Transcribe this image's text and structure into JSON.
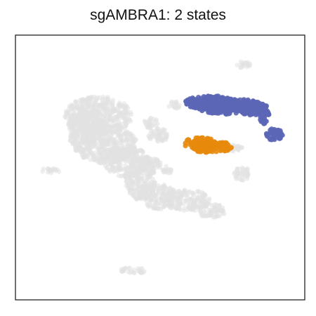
{
  "chart_data": {
    "type": "scatter",
    "title": "sgAMBRA1: 2 states",
    "xlabel": "",
    "ylabel": "",
    "axes_ticks": false,
    "grid": false,
    "legend": "none",
    "colors": {
      "background_cells": "#e2e2e2",
      "state_1": "#5b66b6",
      "state_2": "#e8890c"
    },
    "series": [
      {
        "role": "background",
        "color": "#e2e2e2",
        "regions": [
          {
            "cx": 140,
            "cy": 165,
            "rx": 48,
            "ry": 28
          },
          {
            "cx": 120,
            "cy": 185,
            "rx": 25,
            "ry": 30
          },
          {
            "cx": 150,
            "cy": 205,
            "rx": 45,
            "ry": 28
          },
          {
            "cx": 180,
            "cy": 230,
            "rx": 32,
            "ry": 22
          },
          {
            "cx": 200,
            "cy": 255,
            "rx": 22,
            "ry": 30
          },
          {
            "cx": 225,
            "cy": 280,
            "rx": 26,
            "ry": 18
          },
          {
            "cx": 265,
            "cy": 285,
            "rx": 35,
            "ry": 15
          },
          {
            "cx": 300,
            "cy": 300,
            "rx": 22,
            "ry": 10
          },
          {
            "cx": 215,
            "cy": 235,
            "rx": 14,
            "ry": 12
          },
          {
            "cx": 238,
            "cy": 242,
            "rx": 8,
            "ry": 6
          },
          {
            "cx": 226,
            "cy": 192,
            "rx": 16,
            "ry": 10
          },
          {
            "cx": 215,
            "cy": 175,
            "rx": 10,
            "ry": 8
          },
          {
            "cx": 330,
            "cy": 211,
            "rx": 18,
            "ry": 5
          },
          {
            "cx": 345,
            "cy": 248,
            "rx": 12,
            "ry": 10
          },
          {
            "cx": 72,
            "cy": 243,
            "rx": 14,
            "ry": 4
          },
          {
            "cx": 345,
            "cy": 92,
            "rx": 12,
            "ry": 5
          },
          {
            "cx": 190,
            "cy": 385,
            "rx": 18,
            "ry": 5
          },
          {
            "cx": 248,
            "cy": 150,
            "rx": 8,
            "ry": 6
          }
        ]
      },
      {
        "role": "state_1",
        "color": "#5b66b6",
        "regions": [
          {
            "cx": 300,
            "cy": 146,
            "rx": 36,
            "ry": 10
          },
          {
            "cx": 330,
            "cy": 152,
            "rx": 50,
            "ry": 11
          },
          {
            "cx": 360,
            "cy": 155,
            "rx": 22,
            "ry": 9
          },
          {
            "cx": 376,
            "cy": 165,
            "rx": 7,
            "ry": 12
          },
          {
            "cx": 391,
            "cy": 191,
            "rx": 12,
            "ry": 9
          }
        ]
      },
      {
        "role": "state_2",
        "color": "#e8890c",
        "regions": [
          {
            "cx": 285,
            "cy": 204,
            "rx": 24,
            "ry": 8
          },
          {
            "cx": 310,
            "cy": 209,
            "rx": 20,
            "ry": 7
          },
          {
            "cx": 293,
            "cy": 211,
            "rx": 18,
            "ry": 6
          }
        ]
      }
    ]
  }
}
